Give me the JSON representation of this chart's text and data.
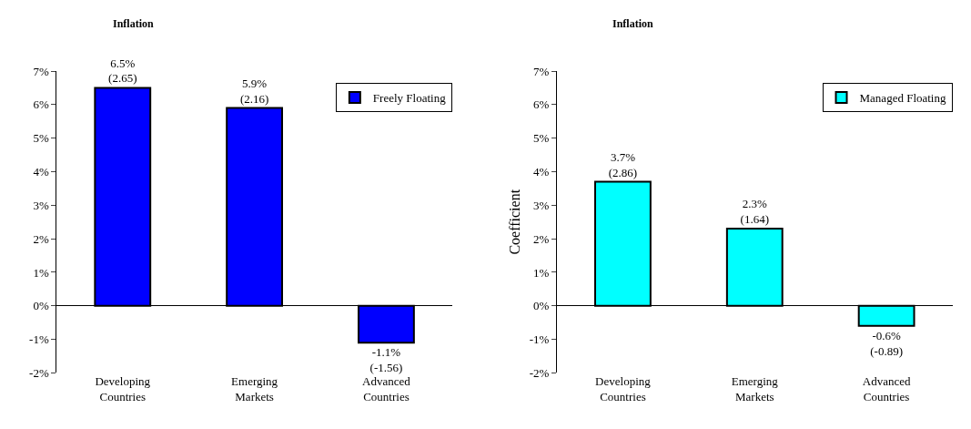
{
  "chart_data": [
    {
      "type": "bar",
      "title": "Inflation",
      "categories": [
        "Developing\nCountries",
        "Emerging\nMarkets",
        "Advanced\nCountries"
      ],
      "series": [
        {
          "name": "Freely Floating",
          "color": "#0000ff",
          "values": [
            6.5,
            5.9,
            -1.1
          ],
          "value_labels": [
            "6.5%\n(2.65)",
            "5.9%\n(2.16)",
            "-1.1%\n(-1.56)"
          ]
        }
      ],
      "ylim": [
        -2,
        7
      ],
      "yticks": [
        {
          "value": -2,
          "label": "-2%"
        },
        {
          "value": -1,
          "label": "-1%"
        },
        {
          "value": 0,
          "label": "0%"
        },
        {
          "value": 1,
          "label": "1%"
        },
        {
          "value": 2,
          "label": "2%"
        },
        {
          "value": 3,
          "label": "3%"
        },
        {
          "value": 4,
          "label": "4%"
        },
        {
          "value": 5,
          "label": "5%"
        },
        {
          "value": 6,
          "label": "6%"
        },
        {
          "value": 7,
          "label": "7%"
        }
      ],
      "legend": "top right"
    },
    {
      "type": "bar",
      "title": "Inflation",
      "ylabel": "Coefficient",
      "categories": [
        "Developing\nCountries",
        "Emerging\nMarkets",
        "Advanced\nCountries"
      ],
      "series": [
        {
          "name": "Managed Floating",
          "color": "#00ffff",
          "values": [
            3.7,
            2.3,
            -0.6
          ],
          "value_labels": [
            "3.7%\n(2.86)",
            "2.3%\n(1.64)",
            "-0.6%\n(-0.89)"
          ]
        }
      ],
      "ylim": [
        -2,
        7
      ],
      "yticks": [
        {
          "value": -2,
          "label": "-2%"
        },
        {
          "value": -1,
          "label": "-1%"
        },
        {
          "value": 0,
          "label": "0%"
        },
        {
          "value": 1,
          "label": "1%"
        },
        {
          "value": 2,
          "label": "2%"
        },
        {
          "value": 3,
          "label": "3%"
        },
        {
          "value": 4,
          "label": "4%"
        },
        {
          "value": 5,
          "label": "5%"
        },
        {
          "value": 6,
          "label": "6%"
        },
        {
          "value": 7,
          "label": "7%"
        }
      ],
      "legend": "top right"
    }
  ]
}
